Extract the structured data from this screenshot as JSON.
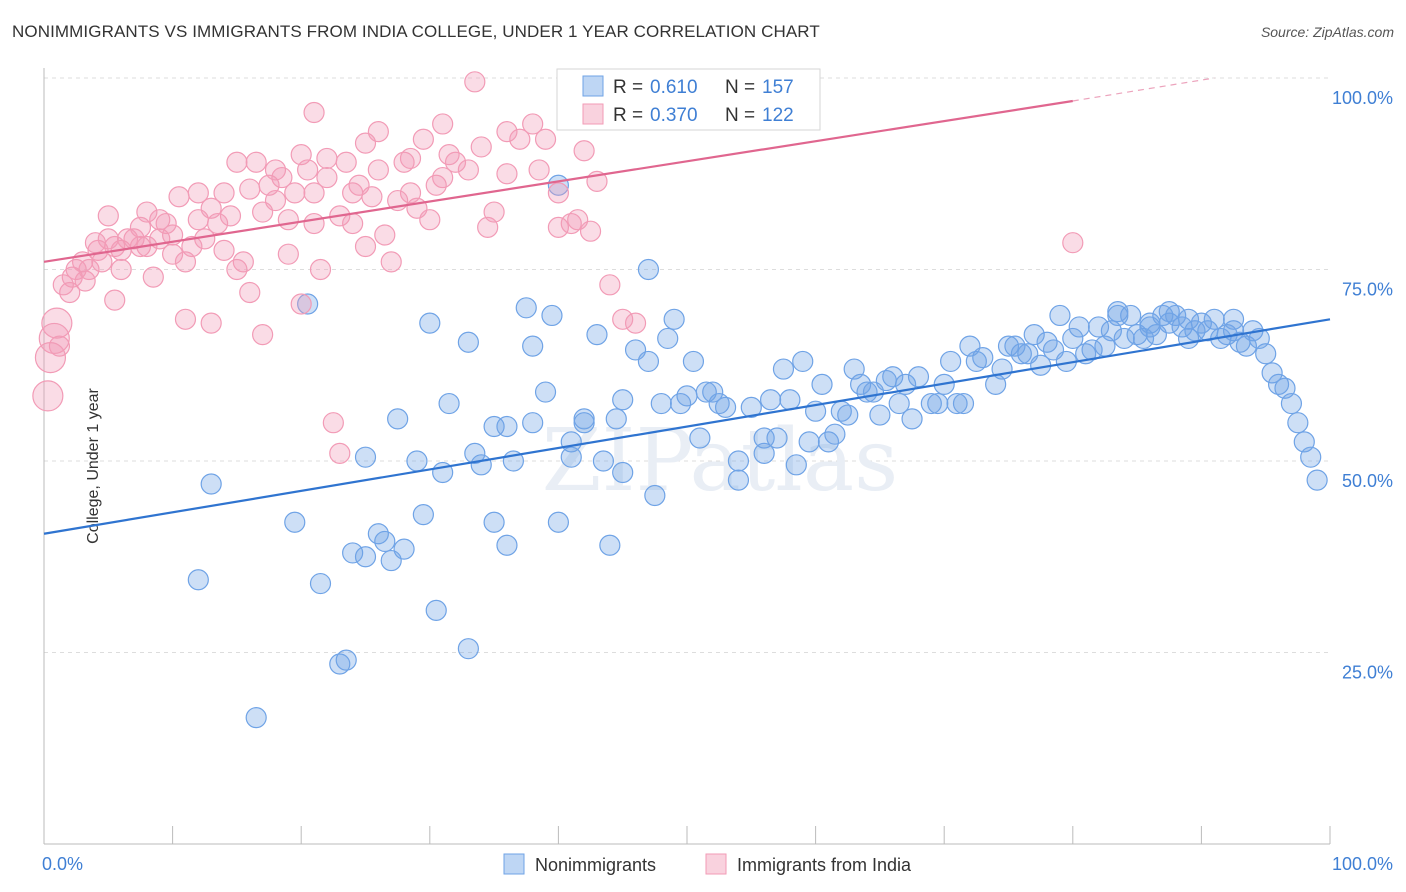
{
  "title": "NONIMMIGRANTS VS IMMIGRANTS FROM INDIA COLLEGE, UNDER 1 YEAR CORRELATION CHART",
  "source": "Source: ZipAtlas.com",
  "watermark": "ZIPatlas",
  "chart_data": {
    "type": "scatter",
    "ylabel": "College, Under 1 year",
    "xlabel": "",
    "xlim": [
      0,
      100
    ],
    "ylim": [
      0,
      100
    ],
    "x_tick_labels": [
      "0.0%",
      "100.0%"
    ],
    "y_tick_labels": [
      "25.0%",
      "50.0%",
      "75.0%",
      "100.0%"
    ],
    "y_ticks": [
      25,
      50,
      75,
      100
    ],
    "grid": true,
    "legend_position": "top-center",
    "legend": [
      {
        "r_label": "R =",
        "r": "0.610",
        "n_label": "N =",
        "n": "157"
      },
      {
        "r_label": "R =",
        "r": "0.370",
        "n_label": "N =",
        "n": "122"
      }
    ],
    "bottom_legend": [
      "Nonimmigrants",
      "Immigrants from India"
    ],
    "series": [
      {
        "name": "Nonimmigrants",
        "color": "#6fa3e6",
        "line_color": "#2f74d0",
        "trend": {
          "x": [
            0,
            100
          ],
          "y": [
            40.5,
            68.5
          ]
        },
        "points": [
          [
            12,
            34.5
          ],
          [
            13,
            47
          ],
          [
            16.5,
            16.5
          ],
          [
            19.5,
            42
          ],
          [
            20.5,
            70.5
          ],
          [
            21.5,
            34
          ],
          [
            23,
            23.5
          ],
          [
            23.5,
            24
          ],
          [
            24,
            38
          ],
          [
            25,
            37.5
          ],
          [
            25,
            50.5
          ],
          [
            26,
            40.5
          ],
          [
            26.5,
            39.5
          ],
          [
            27,
            37
          ],
          [
            27.5,
            55.5
          ],
          [
            28,
            38.5
          ],
          [
            29,
            50
          ],
          [
            29.5,
            43
          ],
          [
            30,
            68
          ],
          [
            30.5,
            30.5
          ],
          [
            31,
            48.5
          ],
          [
            31.5,
            57.5
          ],
          [
            33,
            25.5
          ],
          [
            33,
            65.5
          ],
          [
            33.5,
            51
          ],
          [
            34,
            49.5
          ],
          [
            35,
            42
          ],
          [
            35,
            54.5
          ],
          [
            36,
            54.5
          ],
          [
            36,
            39
          ],
          [
            36.5,
            50
          ],
          [
            37.5,
            70
          ],
          [
            38,
            65
          ],
          [
            38,
            55
          ],
          [
            39,
            59
          ],
          [
            39.5,
            69
          ],
          [
            40,
            42
          ],
          [
            40,
            86
          ],
          [
            41,
            52.5
          ],
          [
            41,
            50.5
          ],
          [
            42,
            55
          ],
          [
            42,
            55.5
          ],
          [
            43,
            66.5
          ],
          [
            43.5,
            50
          ],
          [
            44,
            39
          ],
          [
            44.5,
            55.5
          ],
          [
            45,
            58
          ],
          [
            45,
            48.5
          ],
          [
            46,
            64.5
          ],
          [
            47,
            63
          ],
          [
            47,
            75
          ],
          [
            47.5,
            45.5
          ],
          [
            48,
            57.5
          ],
          [
            48.5,
            66
          ],
          [
            49,
            68.5
          ],
          [
            49.5,
            57.5
          ],
          [
            50,
            58.5
          ],
          [
            50.5,
            63
          ],
          [
            51,
            53
          ],
          [
            51.5,
            59
          ],
          [
            52,
            59
          ],
          [
            52.5,
            57.5
          ],
          [
            53,
            57
          ],
          [
            54,
            47.5
          ],
          [
            54,
            50
          ],
          [
            55,
            57
          ],
          [
            56,
            51
          ],
          [
            56,
            53
          ],
          [
            56.5,
            58
          ],
          [
            57,
            53
          ],
          [
            57.5,
            62
          ],
          [
            58,
            58
          ],
          [
            58.5,
            49.5
          ],
          [
            59,
            63
          ],
          [
            59.5,
            52.5
          ],
          [
            60,
            56.5
          ],
          [
            60.5,
            60
          ],
          [
            61,
            52.5
          ],
          [
            61.5,
            53.5
          ],
          [
            62,
            56.5
          ],
          [
            62.5,
            56
          ],
          [
            63,
            62
          ],
          [
            63.5,
            60
          ],
          [
            64,
            59
          ],
          [
            64.5,
            59
          ],
          [
            65,
            56
          ],
          [
            65.5,
            60.5
          ],
          [
            66,
            61
          ],
          [
            66.5,
            57.5
          ],
          [
            67,
            60
          ],
          [
            67.5,
            55.5
          ],
          [
            68,
            61
          ],
          [
            69,
            57.5
          ],
          [
            69.5,
            57.5
          ],
          [
            70,
            60
          ],
          [
            70.5,
            63
          ],
          [
            71,
            57.5
          ],
          [
            71.5,
            57.5
          ],
          [
            72,
            65
          ],
          [
            72.5,
            63
          ],
          [
            73,
            63.5
          ],
          [
            74,
            60
          ],
          [
            74.5,
            62
          ],
          [
            75,
            65
          ],
          [
            75.5,
            65
          ],
          [
            76,
            64
          ],
          [
            76.5,
            64
          ],
          [
            77,
            66.5
          ],
          [
            77.5,
            62.5
          ],
          [
            78,
            65.5
          ],
          [
            78.5,
            64.5
          ],
          [
            79,
            69
          ],
          [
            79.5,
            63
          ],
          [
            80,
            66
          ],
          [
            80.5,
            67.5
          ],
          [
            81,
            64
          ],
          [
            81.5,
            64.5
          ],
          [
            82,
            67.5
          ],
          [
            82.5,
            65
          ],
          [
            83,
            67
          ],
          [
            83.5,
            69.5
          ],
          [
            84,
            66
          ],
          [
            84.5,
            69
          ],
          [
            85,
            66.5
          ],
          [
            85.5,
            66
          ],
          [
            86,
            68
          ],
          [
            86.5,
            66.5
          ],
          [
            87,
            69
          ],
          [
            87.5,
            68
          ],
          [
            88,
            69
          ],
          [
            88.5,
            67.5
          ],
          [
            89,
            66
          ],
          [
            89.5,
            67
          ],
          [
            90,
            68
          ],
          [
            90.5,
            67
          ],
          [
            91,
            68.5
          ],
          [
            91.5,
            66
          ],
          [
            92,
            66.5
          ],
          [
            92.5,
            67
          ],
          [
            93,
            65.5
          ],
          [
            93.5,
            65
          ],
          [
            94,
            67
          ],
          [
            94.5,
            66
          ],
          [
            95,
            64
          ],
          [
            95.5,
            61.5
          ],
          [
            96,
            60
          ],
          [
            96.5,
            59.5
          ],
          [
            97,
            57.5
          ],
          [
            97.5,
            55
          ],
          [
            98,
            52.5
          ],
          [
            98.5,
            50.5
          ],
          [
            99,
            47.5
          ],
          [
            92.5,
            68.5
          ],
          [
            89,
            68.5
          ],
          [
            87.5,
            69.5
          ],
          [
            86,
            67.5
          ],
          [
            83.5,
            69
          ]
        ]
      },
      {
        "name": "Immigrants from India",
        "color": "#f29bb6",
        "line_color": "#e0668f",
        "trend": {
          "x": [
            0,
            80
          ],
          "y": [
            76,
            97
          ]
        },
        "trend_dash": {
          "x": [
            80,
            91
          ],
          "y": [
            97,
            100
          ]
        },
        "points": [
          [
            0.3,
            58.5
          ],
          [
            0.5,
            63.5
          ],
          [
            0.8,
            66
          ],
          [
            1,
            68
          ],
          [
            1.2,
            65
          ],
          [
            1.5,
            73
          ],
          [
            2,
            72
          ],
          [
            2.2,
            74
          ],
          [
            2.5,
            75
          ],
          [
            3,
            76
          ],
          [
            3.2,
            73.5
          ],
          [
            3.5,
            75
          ],
          [
            4,
            78.5
          ],
          [
            4.2,
            77.5
          ],
          [
            4.5,
            76
          ],
          [
            5,
            79
          ],
          [
            5,
            82
          ],
          [
            5.5,
            78
          ],
          [
            5.5,
            71
          ],
          [
            6,
            77.5
          ],
          [
            6,
            75
          ],
          [
            6.5,
            79
          ],
          [
            7,
            79
          ],
          [
            7.5,
            80.5
          ],
          [
            7.5,
            78
          ],
          [
            8,
            78
          ],
          [
            8,
            82.5
          ],
          [
            8.5,
            74
          ],
          [
            9,
            81.5
          ],
          [
            9,
            79
          ],
          [
            9.5,
            81
          ],
          [
            10,
            79.5
          ],
          [
            10,
            77
          ],
          [
            10.5,
            84.5
          ],
          [
            11,
            76
          ],
          [
            11,
            68.5
          ],
          [
            11.5,
            78
          ],
          [
            12,
            85
          ],
          [
            12,
            81.5
          ],
          [
            12.5,
            79
          ],
          [
            13,
            83
          ],
          [
            13,
            68
          ],
          [
            13.5,
            81
          ],
          [
            14,
            85
          ],
          [
            14,
            77.5
          ],
          [
            14.5,
            82
          ],
          [
            15,
            75
          ],
          [
            15,
            89
          ],
          [
            15.5,
            76
          ],
          [
            16,
            85.5
          ],
          [
            16,
            72
          ],
          [
            16.5,
            89
          ],
          [
            17,
            82.5
          ],
          [
            17,
            66.5
          ],
          [
            17.5,
            86
          ],
          [
            18,
            88
          ],
          [
            18,
            84
          ],
          [
            18.5,
            87
          ],
          [
            19,
            81.5
          ],
          [
            19,
            77
          ],
          [
            19.5,
            85
          ],
          [
            20,
            90
          ],
          [
            20,
            70.5
          ],
          [
            20.5,
            88
          ],
          [
            21,
            85
          ],
          [
            21,
            81
          ],
          [
            21.5,
            75
          ],
          [
            22,
            87
          ],
          [
            22,
            89.5
          ],
          [
            22.5,
            55
          ],
          [
            23,
            51
          ],
          [
            23,
            82
          ],
          [
            23.5,
            89
          ],
          [
            24,
            85
          ],
          [
            24,
            81
          ],
          [
            24.5,
            86
          ],
          [
            25,
            91.5
          ],
          [
            25,
            78
          ],
          [
            25.5,
            84.5
          ],
          [
            26,
            93
          ],
          [
            26,
            88
          ],
          [
            26.5,
            79.5
          ],
          [
            27,
            76
          ],
          [
            27.5,
            84
          ],
          [
            28,
            89
          ],
          [
            28.5,
            85
          ],
          [
            28.5,
            89.5
          ],
          [
            29,
            83
          ],
          [
            29.5,
            92
          ],
          [
            30,
            81.5
          ],
          [
            30.5,
            86
          ],
          [
            31,
            94
          ],
          [
            31,
            87
          ],
          [
            31.5,
            90
          ],
          [
            32,
            89
          ],
          [
            33,
            88
          ],
          [
            33.5,
            99.5
          ],
          [
            34,
            91
          ],
          [
            34.5,
            80.5
          ],
          [
            35,
            82.5
          ],
          [
            36,
            93
          ],
          [
            36,
            87.5
          ],
          [
            37,
            92
          ],
          [
            38,
            94
          ],
          [
            38.5,
            88
          ],
          [
            39,
            92
          ],
          [
            40,
            80.5
          ],
          [
            40,
            85
          ],
          [
            41,
            81
          ],
          [
            41.5,
            81.5
          ],
          [
            42,
            90.5
          ],
          [
            42.5,
            80
          ],
          [
            43,
            86.5
          ],
          [
            44,
            73
          ],
          [
            45,
            68.5
          ],
          [
            46,
            68
          ],
          [
            80,
            78.5
          ],
          [
            21,
            95.5
          ]
        ]
      }
    ]
  }
}
